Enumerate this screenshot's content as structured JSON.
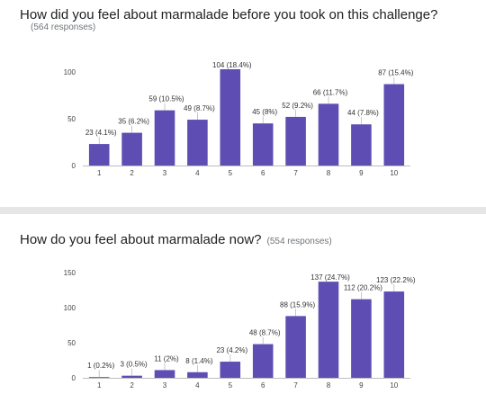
{
  "chart_data": [
    {
      "type": "bar",
      "title": "How did you feel about marmalade before you took on this challenge?",
      "subtitle": "(564 responses)",
      "categories": [
        "1",
        "2",
        "3",
        "4",
        "5",
        "6",
        "7",
        "8",
        "9",
        "10"
      ],
      "values": [
        23,
        35,
        59,
        49,
        104,
        45,
        52,
        66,
        44,
        87
      ],
      "data_labels": [
        "23 (4.1%)",
        "35 (6.2%)",
        "59 (10.5%)",
        "49 (8.7%)",
        "104 (18.4%)",
        "45 (8%)",
        "52 (9.2%)",
        "66 (11.7%)",
        "44 (7.8%)",
        "87 (15.4%)"
      ],
      "yticks": [
        0,
        50,
        100
      ],
      "ylim": [
        0,
        100
      ],
      "grid": false,
      "bar_color": "#5e4db2"
    },
    {
      "type": "bar",
      "title": "How do you feel about marmalade now?",
      "subtitle": "(554 responses)",
      "categories": [
        "1",
        "2",
        "3",
        "4",
        "5",
        "6",
        "7",
        "8",
        "9",
        "10"
      ],
      "values": [
        1,
        3,
        11,
        8,
        23,
        48,
        88,
        137,
        112,
        123
      ],
      "data_labels": [
        "1 (0.2%)",
        "3 (0.5%)",
        "11 (2%)",
        "8 (1.4%)",
        "23 (4.2%)",
        "48 (8.7%)",
        "88 (15.9%)",
        "137 (24.7%)",
        "112 (20.2%)",
        "123 (22.2%)"
      ],
      "yticks": [
        0,
        50,
        100,
        150
      ],
      "ylim": [
        0,
        150
      ],
      "grid": false,
      "bar_color": "#5e4db2"
    }
  ]
}
